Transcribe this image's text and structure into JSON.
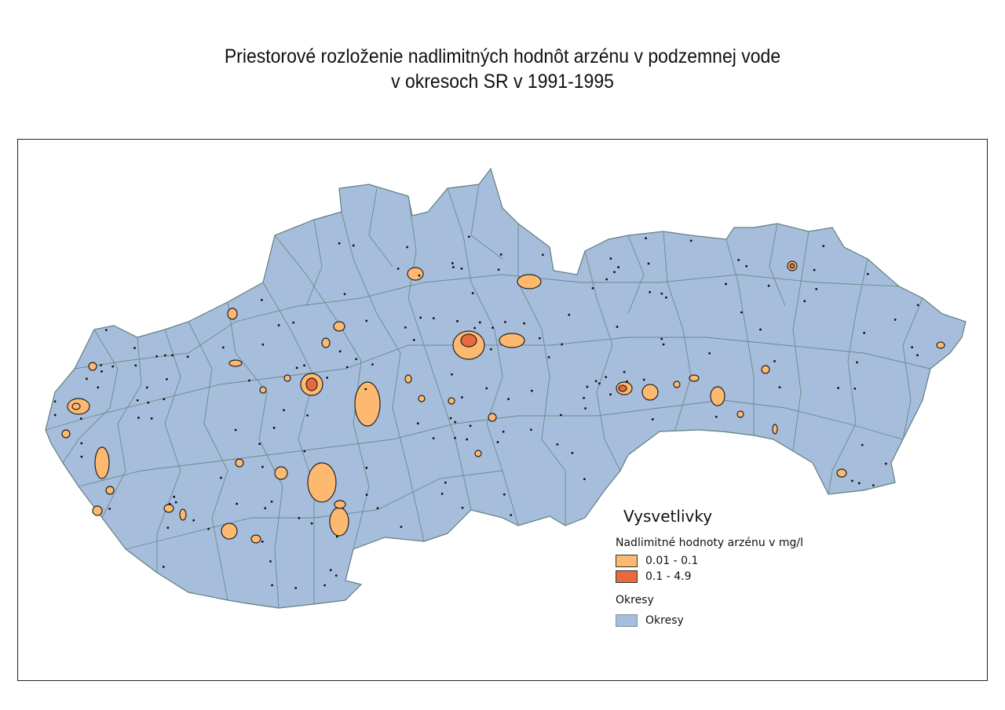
{
  "title_line1": "Priestorové rozloženie nadlimitných hodnôt arzénu v podzemnej vode",
  "title_line2": "v okresoch SR v 1991-1995",
  "legend": {
    "title": "Vysvetlivky",
    "group1_title": "Nadlimitné hodnoty arzénu v mg/l",
    "classes": [
      {
        "label": "0.01 - 0.1",
        "color": "#fdb96f"
      },
      {
        "label": "0.1 - 4.9",
        "color": "#e8693e"
      }
    ],
    "group2_title": "Okresy",
    "okresy_label": "Okresy",
    "okresy_color": "#a6bedc"
  }
}
